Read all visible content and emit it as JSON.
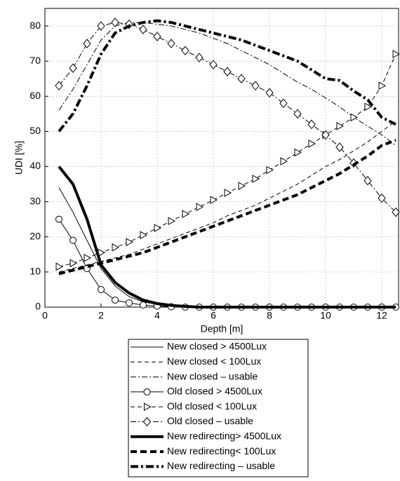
{
  "chart_data": {
    "type": "line",
    "x_label": "Depth [m]",
    "y_label": "UDI [%]",
    "xlim": [
      0,
      12.6
    ],
    "ylim": [
      0,
      85
    ],
    "xticks": [
      0,
      2,
      4,
      6,
      8,
      10,
      12
    ],
    "yticks": [
      0,
      10,
      20,
      30,
      40,
      50,
      60,
      70,
      80
    ],
    "grid": true,
    "x": [
      0.5,
      1,
      1.5,
      2,
      2.5,
      3,
      3.5,
      4,
      4.5,
      5,
      5.5,
      6,
      6.5,
      7,
      7.5,
      8,
      8.5,
      9,
      9.5,
      10,
      10.5,
      11,
      11.5,
      12,
      12.5
    ],
    "series": [
      {
        "name": "New closed > 4500Lux",
        "color": "#000000",
        "width": 1,
        "dash": "none",
        "marker": "none",
        "values": [
          34,
          27,
          19,
          11,
          6,
          3,
          1.5,
          0.8,
          0.4,
          0.2,
          0.1,
          0,
          0,
          0,
          0,
          0,
          0,
          0,
          0,
          0,
          0,
          0,
          0,
          0,
          0
        ]
      },
      {
        "name": "New closed < 100Lux",
        "color": "#000000",
        "width": 1,
        "dash": "6,4",
        "marker": "none",
        "values": [
          10,
          11,
          12,
          13,
          14,
          15,
          16.5,
          18,
          19.5,
          21,
          22.5,
          24,
          26,
          27.5,
          29,
          31,
          33,
          35,
          37.5,
          40,
          42,
          44.5,
          47,
          50,
          53
        ]
      },
      {
        "name": "New closed – usable",
        "color": "#000000",
        "width": 1,
        "dash": "8,3,2,3",
        "marker": "none",
        "values": [
          56,
          62,
          69,
          76,
          80,
          81,
          81,
          80.5,
          80,
          79,
          78,
          76.5,
          75,
          73,
          71,
          69,
          66.5,
          64,
          62,
          59.5,
          57,
          54,
          51.5,
          49,
          46
        ]
      },
      {
        "name": "Old closed > 4500Lux",
        "color": "#000000",
        "width": 1,
        "dash": "none",
        "marker": "circle",
        "values": [
          25,
          19,
          11,
          5,
          2,
          1.2,
          0.6,
          0.3,
          0.1,
          0,
          0,
          0,
          0,
          0,
          0,
          0,
          0,
          0,
          0,
          0,
          0,
          0,
          0,
          0,
          0
        ]
      },
      {
        "name": "Old closed < 100Lux",
        "color": "#000000",
        "width": 1,
        "dash": "6,4",
        "marker": "triangle",
        "values": [
          11.5,
          12.5,
          14,
          15.5,
          17,
          18.5,
          20.5,
          22.5,
          24.5,
          26.5,
          28.5,
          30.5,
          32.5,
          34.5,
          36.5,
          39,
          41.5,
          44,
          46.5,
          49,
          51.5,
          54,
          57,
          63,
          72
        ]
      },
      {
        "name": "Old closed – usable",
        "color": "#000000",
        "width": 1,
        "dash": "8,3,2,3",
        "marker": "diamond",
        "values": [
          63,
          68,
          75,
          80,
          81,
          80.5,
          79,
          77,
          75,
          73,
          71,
          69,
          67,
          65,
          63,
          61,
          58,
          55,
          52,
          49,
          45.5,
          41,
          36,
          31,
          27
        ]
      },
      {
        "name": "New redirecting> 4500Lux",
        "color": "#000000",
        "width": 4,
        "dash": "none",
        "marker": "none",
        "values": [
          40,
          35,
          25,
          12,
          7,
          4,
          2,
          1,
          0.5,
          0.2,
          0,
          0,
          0,
          0,
          0,
          0,
          0,
          0,
          0,
          0,
          0,
          0,
          0,
          0,
          0
        ]
      },
      {
        "name": "New redirecting< 100Lux",
        "color": "#000000",
        "width": 4,
        "dash": "9,5",
        "marker": "none",
        "values": [
          9.5,
          10.5,
          11.5,
          12.5,
          13.5,
          14.5,
          15.5,
          17,
          18.5,
          20,
          21.5,
          23,
          24.5,
          26,
          27.5,
          29,
          30.5,
          32,
          34,
          36,
          38,
          40.5,
          43,
          46,
          47.5
        ]
      },
      {
        "name": "New redirecting – usable",
        "color": "#000000",
        "width": 4,
        "dash": "11,4,3,4",
        "marker": "none",
        "values": [
          50,
          55,
          63,
          72,
          78,
          80,
          81,
          81.5,
          81,
          80,
          79,
          78,
          77,
          76,
          74.5,
          73,
          71.5,
          70,
          67.5,
          65,
          64.5,
          61.5,
          59,
          54,
          52
        ]
      }
    ]
  }
}
